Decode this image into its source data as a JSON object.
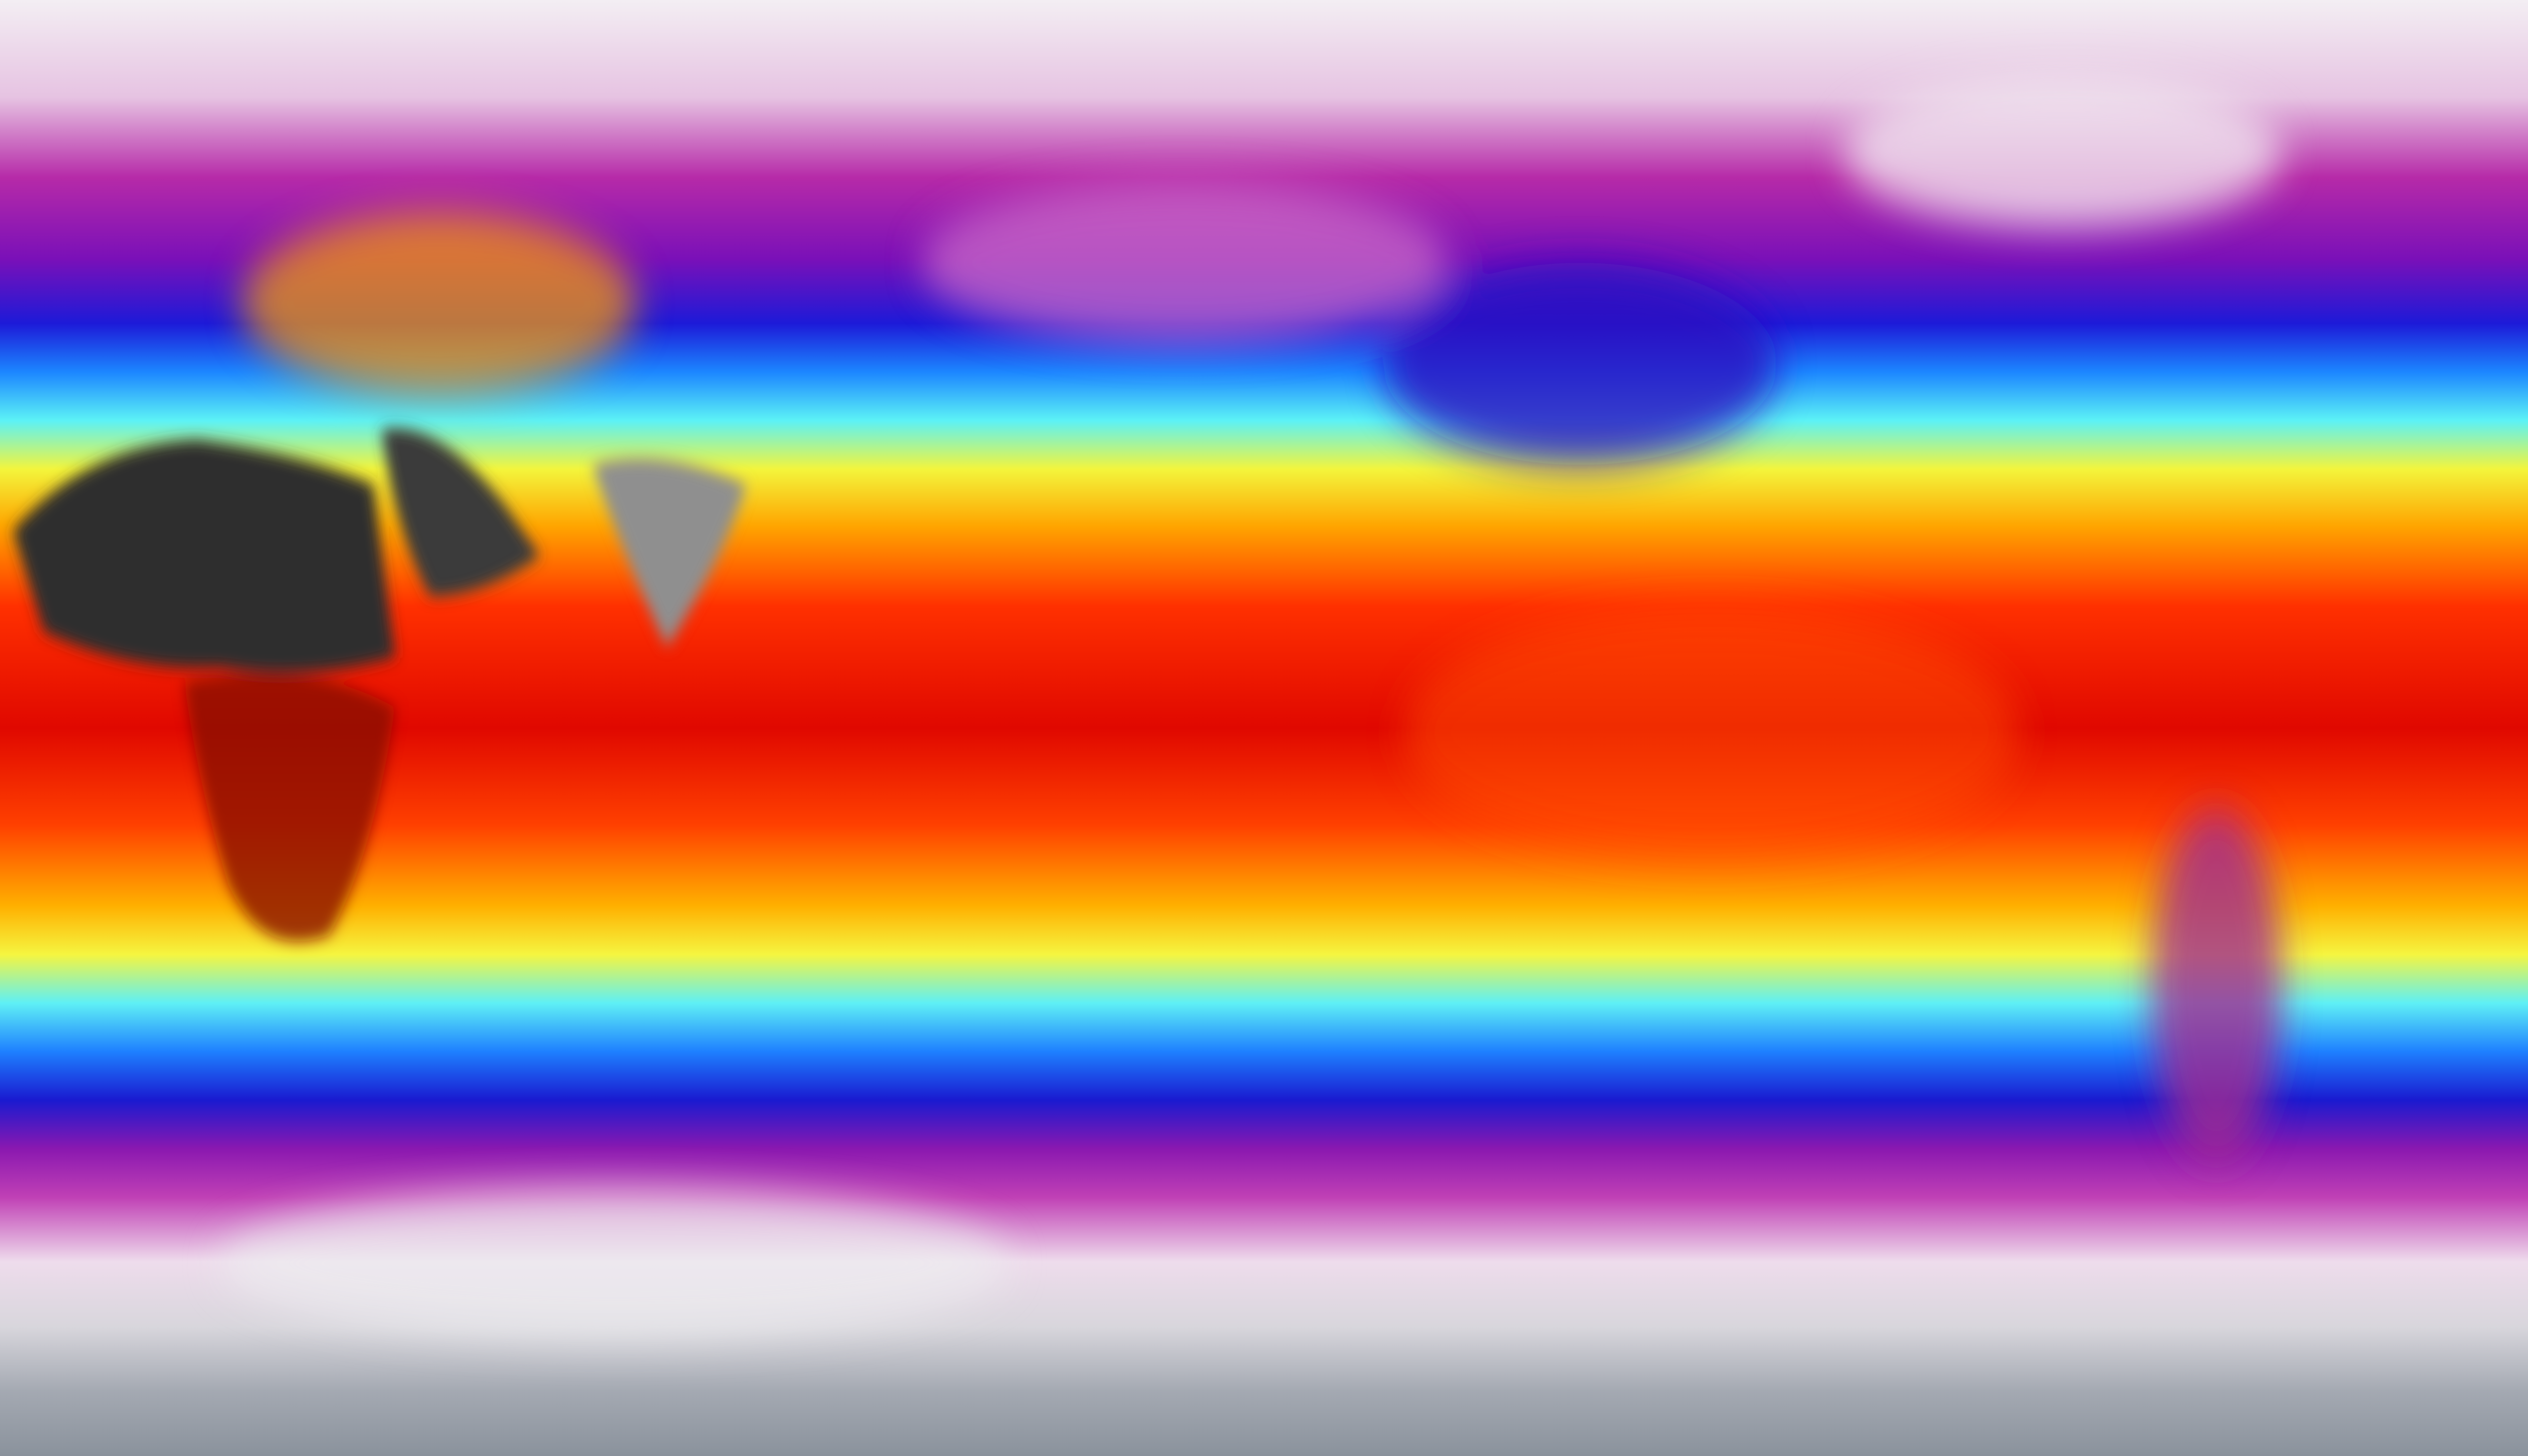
{
  "map": {
    "projection": "equirectangular",
    "variable_colormap": [
      "#f4e8f2",
      "#e9b9e3",
      "#b2139e",
      "#1a1ad0",
      "#1a7cff",
      "#57f3ff",
      "#f8f73a",
      "#ffb000",
      "#ff3a00",
      "#d40000",
      "#2b2b2b"
    ],
    "latitude_bands": [
      {
        "lat": 90,
        "color": "#f3eef3"
      },
      {
        "lat": 78,
        "color": "#e6c3e2"
      },
      {
        "lat": 68,
        "color": "#b62aa8"
      },
      {
        "lat": 58,
        "color": "#7a10b8"
      },
      {
        "lat": 50,
        "color": "#1d1ad8"
      },
      {
        "lat": 44,
        "color": "#1c86ff"
      },
      {
        "lat": 38,
        "color": "#5cf2f6"
      },
      {
        "lat": 32,
        "color": "#f3f53c"
      },
      {
        "lat": 25,
        "color": "#ffa500"
      },
      {
        "lat": 15,
        "color": "#ff3000"
      },
      {
        "lat": 0,
        "color": "#e00800"
      },
      {
        "lat": -12,
        "color": "#ff4000"
      },
      {
        "lat": -22,
        "color": "#ffb000"
      },
      {
        "lat": -28,
        "color": "#f5f540"
      },
      {
        "lat": -34,
        "color": "#5ff0f5"
      },
      {
        "lat": -40,
        "color": "#1e80ff"
      },
      {
        "lat": -46,
        "color": "#1a1ad0"
      },
      {
        "lat": -52,
        "color": "#8a18b0"
      },
      {
        "lat": -58,
        "color": "#c040b5"
      },
      {
        "lat": -66,
        "color": "#eedcec"
      },
      {
        "lat": -74,
        "color": "#d8d6dc"
      },
      {
        "lat": -82,
        "color": "#a4a9b2"
      },
      {
        "lat": -90,
        "color": "#8a929c"
      }
    ],
    "hot_land_color": "#2e2e2e",
    "highland_color": "#8f8f8f"
  }
}
